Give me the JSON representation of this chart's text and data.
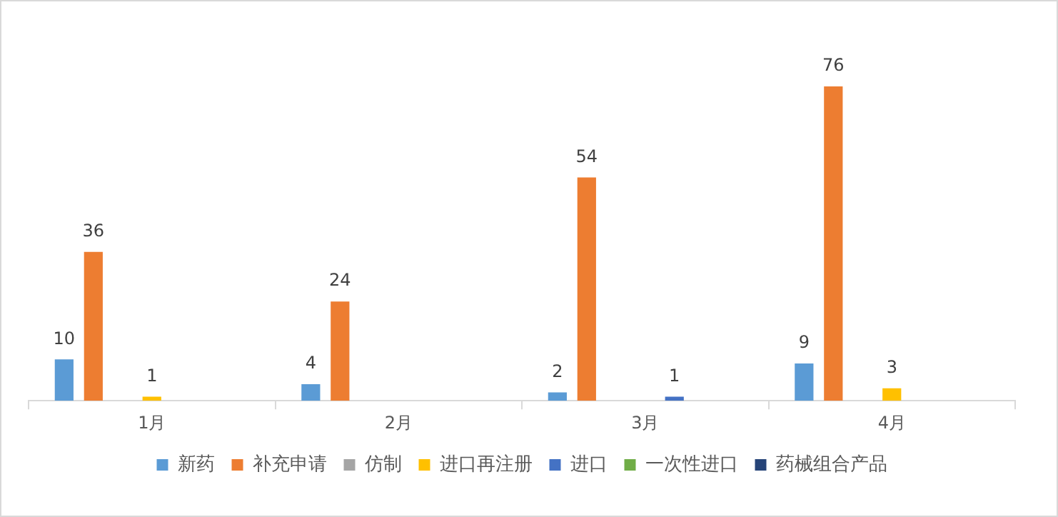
{
  "chart_data": {
    "type": "bar",
    "categories": [
      "1月",
      "2月",
      "3月",
      "4月"
    ],
    "series": [
      {
        "name": "新药",
        "color": "#5b9bd5",
        "values": [
          10,
          4,
          2,
          9
        ]
      },
      {
        "name": "补充申请",
        "color": "#ed7d31",
        "values": [
          36,
          24,
          54,
          76
        ]
      },
      {
        "name": "仿制",
        "color": "#a5a5a5",
        "values": [
          null,
          null,
          null,
          null
        ]
      },
      {
        "name": "进口再注册",
        "color": "#ffc000",
        "values": [
          1,
          null,
          null,
          3
        ]
      },
      {
        "name": "进口",
        "color": "#4472c4",
        "values": [
          null,
          null,
          1,
          null
        ]
      },
      {
        "name": "一次性进口",
        "color": "#70ad47",
        "values": [
          null,
          null,
          null,
          null
        ]
      },
      {
        "name": "药械组合产品",
        "color": "#264478",
        "values": [
          null,
          null,
          null,
          null
        ]
      }
    ],
    "data_labels": true,
    "legend": "bottom",
    "grid": false
  }
}
